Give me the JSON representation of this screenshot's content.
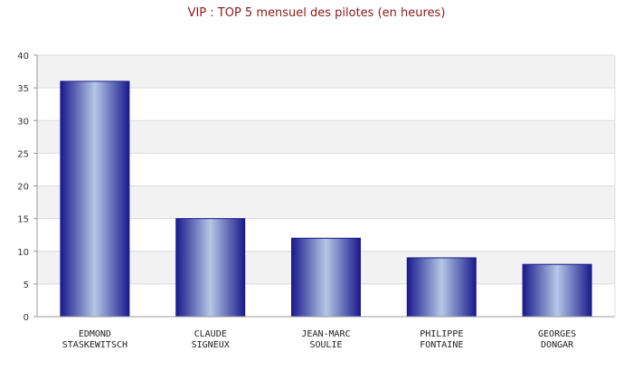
{
  "chart_data": {
    "type": "bar",
    "title": "VIP : TOP 5 mensuel des pilotes (en heures)",
    "categories": [
      [
        "EDMOND",
        "STASKEWITSCH"
      ],
      [
        "CLAUDE",
        "SIGNEUX"
      ],
      [
        "JEAN-MARC",
        "SOULIE"
      ],
      [
        "PHILIPPE",
        "FONTAINE"
      ],
      [
        "GEORGES",
        "DONGAR"
      ]
    ],
    "values": [
      36,
      15,
      12,
      9,
      8
    ],
    "ylim": [
      0,
      40
    ],
    "yticks": [
      0,
      5,
      10,
      15,
      20,
      25,
      30,
      35,
      40
    ],
    "grid": true,
    "colors": {
      "bar_dark": "#1a1a8c",
      "bar_light": "#b4c8e6",
      "band": "#f2f2f2",
      "grid": "#dcdcdc",
      "title": "#8b1a1a"
    }
  }
}
